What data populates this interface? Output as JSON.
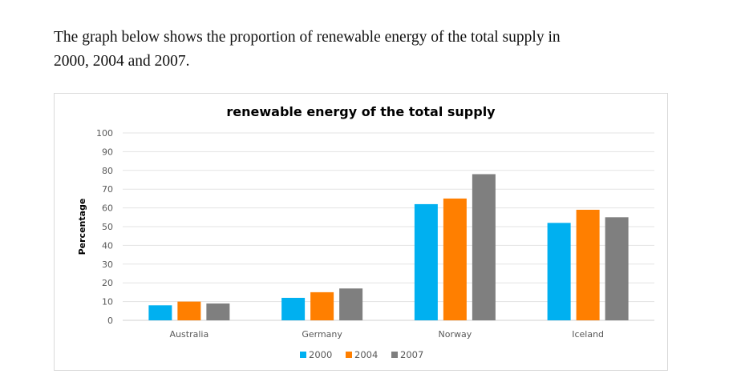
{
  "intro_text": {
    "line1": "The graph below shows the proportion of renewable energy of the total supply in",
    "line2": "2000, 2004 and 2007."
  },
  "chart_data": {
    "type": "bar",
    "title": "renewable energy of the total supply",
    "xlabel": "",
    "ylabel": "Percentage",
    "ylim": [
      0,
      100
    ],
    "yticks": [
      0,
      10,
      20,
      30,
      40,
      50,
      60,
      70,
      80,
      90,
      100
    ],
    "grid": true,
    "legend_position": "bottom",
    "categories": [
      "Australia",
      "Germany",
      "Norway",
      "Iceland"
    ],
    "series": [
      {
        "name": "2000",
        "color": "#00b0f0",
        "values": [
          8,
          12,
          62,
          52
        ]
      },
      {
        "name": "2004",
        "color": "#ff7f00",
        "values": [
          10,
          15,
          65,
          59
        ]
      },
      {
        "name": "2007",
        "color": "#7f7f7f",
        "values": [
          9,
          17,
          78,
          55
        ]
      }
    ]
  }
}
